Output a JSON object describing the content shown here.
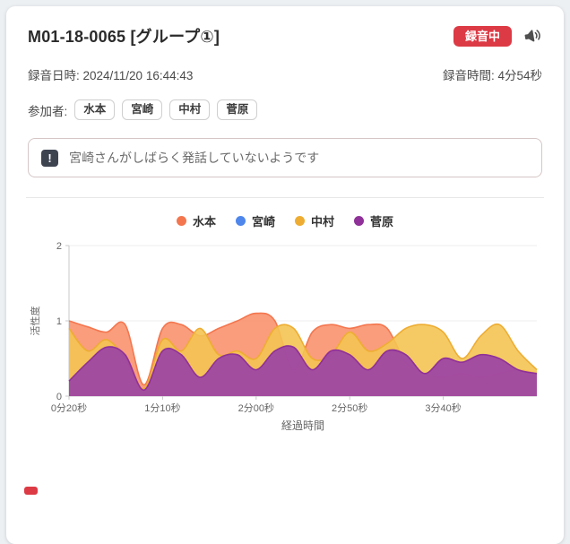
{
  "header": {
    "title": "M01-18-0065 [グループ①]",
    "recording_badge": "録音中",
    "badge_color": "#dc3a45"
  },
  "info": {
    "datetime": "録音日時: 2024/11/20 16:44:43",
    "duration": "録音時間: 4分54秒"
  },
  "participants": {
    "label": "参加者:",
    "names": [
      "水本",
      "宮崎",
      "中村",
      "菅原"
    ]
  },
  "alert": {
    "icon_glyph": "!",
    "message": "宮崎さんがしばらく発話していないようです"
  },
  "chart_data": {
    "type": "area",
    "title": "",
    "xlabel": "経過時間",
    "ylabel": "活性度",
    "ylim": [
      0,
      2
    ],
    "yticks": [
      0,
      1,
      2
    ],
    "grid": "horizontal-faint",
    "legend_position": "top-center",
    "x_seconds": [
      20,
      30,
      40,
      50,
      60,
      70,
      80,
      90,
      100,
      110,
      120,
      130,
      140,
      150,
      160,
      170,
      180,
      190,
      200,
      210,
      220,
      230,
      240,
      250,
      260,
      270
    ],
    "xtick_seconds": [
      20,
      70,
      120,
      170,
      220
    ],
    "xtick_labels": [
      "0分20秒",
      "1分10秒",
      "2分00秒",
      "2分50秒",
      "3分40秒"
    ],
    "series": [
      {
        "name": "水本",
        "color": "#f4764e",
        "fill": "#f8906a",
        "fill_opacity": 0.88,
        "values": [
          1.0,
          0.92,
          0.85,
          0.95,
          0.15,
          0.9,
          0.95,
          0.8,
          0.9,
          1.0,
          1.1,
          1.0,
          0.35,
          0.85,
          0.95,
          0.9,
          0.95,
          0.9,
          0.45,
          0.3,
          0.25,
          0.3,
          0.25,
          0.3,
          0.35,
          0.3
        ]
      },
      {
        "name": "宮崎",
        "color": "#4e86ec",
        "fill": "#6f9cf0",
        "fill_opacity": 0.85,
        "values": [
          0,
          0,
          0,
          0,
          0,
          0,
          0,
          0,
          0,
          0,
          0,
          0,
          0,
          0,
          0,
          0,
          0,
          0,
          0,
          0,
          0,
          0,
          0,
          0,
          0,
          0
        ]
      },
      {
        "name": "中村",
        "color": "#eead32",
        "fill": "#f4c453",
        "fill_opacity": 0.9,
        "values": [
          0.9,
          0.6,
          0.75,
          0.5,
          0.1,
          0.75,
          0.6,
          0.9,
          0.55,
          0.6,
          0.5,
          0.9,
          0.9,
          0.5,
          0.55,
          0.85,
          0.6,
          0.7,
          0.9,
          0.95,
          0.85,
          0.5,
          0.8,
          0.95,
          0.6,
          0.35
        ]
      },
      {
        "name": "菅原",
        "color": "#8f3198",
        "fill": "#9c44a5",
        "fill_opacity": 0.93,
        "values": [
          0.2,
          0.45,
          0.65,
          0.55,
          0.08,
          0.6,
          0.55,
          0.25,
          0.5,
          0.55,
          0.35,
          0.6,
          0.65,
          0.35,
          0.6,
          0.55,
          0.35,
          0.6,
          0.55,
          0.3,
          0.5,
          0.45,
          0.55,
          0.5,
          0.35,
          0.3
        ]
      }
    ]
  }
}
